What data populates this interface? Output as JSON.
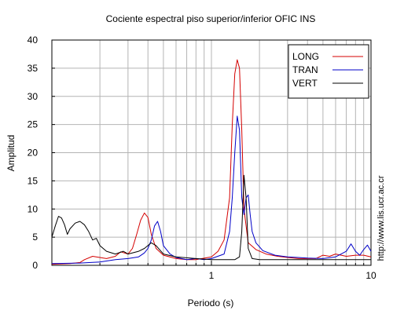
{
  "chart_data": {
    "type": "line",
    "title": "Cociente espectral piso superior/inferior  OFIC INS",
    "xlabel": "Periodo (s)",
    "ylabel": "Amplitud",
    "x_scale": "log",
    "xlim": [
      0.1,
      10
    ],
    "ylim": [
      0,
      40
    ],
    "grid": true,
    "legend_position": "top-right",
    "x_ticks": [
      1,
      10
    ],
    "x_tick_labels": [
      "1",
      "10"
    ],
    "y_ticks": [
      0,
      5,
      10,
      15,
      20,
      25,
      30,
      35,
      40
    ],
    "y_tick_labels": [
      "0",
      "5",
      "10",
      "15",
      "20",
      "25",
      "30",
      "35",
      "40"
    ],
    "watermark": "http://www.lis.ucr.ac.cr",
    "series": [
      {
        "name": "LONG",
        "color": "#d40000",
        "points": [
          [
            0.1,
            0.2
          ],
          [
            0.13,
            0.3
          ],
          [
            0.15,
            0.5
          ],
          [
            0.16,
            1.0
          ],
          [
            0.18,
            1.6
          ],
          [
            0.2,
            1.4
          ],
          [
            0.22,
            1.2
          ],
          [
            0.25,
            1.6
          ],
          [
            0.27,
            2.4
          ],
          [
            0.3,
            2.0
          ],
          [
            0.32,
            3.0
          ],
          [
            0.34,
            5.5
          ],
          [
            0.36,
            8.0
          ],
          [
            0.38,
            9.3
          ],
          [
            0.4,
            8.5
          ],
          [
            0.42,
            5.5
          ],
          [
            0.45,
            3.0
          ],
          [
            0.5,
            1.8
          ],
          [
            0.6,
            1.2
          ],
          [
            0.7,
            1.0
          ],
          [
            0.8,
            1.0
          ],
          [
            1.0,
            1.5
          ],
          [
            1.1,
            2.5
          ],
          [
            1.2,
            4.5
          ],
          [
            1.3,
            12.0
          ],
          [
            1.35,
            25.0
          ],
          [
            1.4,
            34.0
          ],
          [
            1.45,
            36.5
          ],
          [
            1.5,
            35.0
          ],
          [
            1.55,
            24.0
          ],
          [
            1.6,
            10.0
          ],
          [
            1.7,
            4.0
          ],
          [
            1.9,
            2.8
          ],
          [
            2.2,
            2.0
          ],
          [
            2.6,
            1.6
          ],
          [
            3.0,
            1.4
          ],
          [
            3.5,
            1.2
          ],
          [
            4.5,
            1.2
          ],
          [
            5.0,
            1.8
          ],
          [
            5.5,
            1.6
          ],
          [
            6.0,
            2.0
          ],
          [
            7.0,
            1.6
          ],
          [
            8.0,
            1.8
          ],
          [
            9.0,
            1.8
          ],
          [
            10.0,
            1.5
          ]
        ]
      },
      {
        "name": "TRAN",
        "color": "#0000c8",
        "points": [
          [
            0.1,
            0.3
          ],
          [
            0.15,
            0.4
          ],
          [
            0.2,
            0.6
          ],
          [
            0.25,
            1.0
          ],
          [
            0.3,
            1.2
          ],
          [
            0.35,
            1.5
          ],
          [
            0.38,
            2.2
          ],
          [
            0.4,
            3.0
          ],
          [
            0.42,
            4.5
          ],
          [
            0.44,
            7.0
          ],
          [
            0.46,
            7.8
          ],
          [
            0.48,
            6.0
          ],
          [
            0.5,
            3.5
          ],
          [
            0.55,
            2.0
          ],
          [
            0.6,
            1.4
          ],
          [
            0.7,
            1.0
          ],
          [
            0.8,
            1.2
          ],
          [
            0.9,
            1.0
          ],
          [
            1.0,
            1.2
          ],
          [
            1.2,
            2.0
          ],
          [
            1.3,
            6.0
          ],
          [
            1.35,
            12.0
          ],
          [
            1.4,
            20.0
          ],
          [
            1.45,
            26.5
          ],
          [
            1.5,
            24.0
          ],
          [
            1.55,
            12.0
          ],
          [
            1.6,
            9.0
          ],
          [
            1.65,
            12.0
          ],
          [
            1.7,
            12.5
          ],
          [
            1.75,
            9.0
          ],
          [
            1.8,
            6.0
          ],
          [
            1.9,
            4.0
          ],
          [
            2.1,
            2.6
          ],
          [
            2.5,
            1.8
          ],
          [
            3.0,
            1.5
          ],
          [
            4.0,
            1.3
          ],
          [
            5.0,
            1.2
          ],
          [
            6.0,
            1.5
          ],
          [
            6.5,
            2.0
          ],
          [
            7.0,
            2.5
          ],
          [
            7.5,
            3.8
          ],
          [
            8.0,
            2.5
          ],
          [
            8.5,
            1.8
          ],
          [
            9.0,
            2.8
          ],
          [
            9.5,
            3.6
          ],
          [
            10.0,
            2.5
          ]
        ]
      },
      {
        "name": "VERT",
        "color": "#000000",
        "points": [
          [
            0.1,
            5.0
          ],
          [
            0.105,
            7.0
          ],
          [
            0.11,
            8.7
          ],
          [
            0.115,
            8.4
          ],
          [
            0.12,
            7.2
          ],
          [
            0.125,
            5.5
          ],
          [
            0.13,
            6.5
          ],
          [
            0.14,
            7.5
          ],
          [
            0.15,
            7.8
          ],
          [
            0.16,
            7.2
          ],
          [
            0.17,
            6.0
          ],
          [
            0.18,
            4.5
          ],
          [
            0.19,
            4.8
          ],
          [
            0.2,
            3.5
          ],
          [
            0.22,
            2.5
          ],
          [
            0.25,
            2.0
          ],
          [
            0.28,
            2.5
          ],
          [
            0.3,
            2.0
          ],
          [
            0.35,
            2.5
          ],
          [
            0.38,
            3.0
          ],
          [
            0.42,
            4.0
          ],
          [
            0.45,
            3.5
          ],
          [
            0.5,
            2.0
          ],
          [
            0.6,
            1.5
          ],
          [
            0.8,
            1.2
          ],
          [
            1.0,
            1.0
          ],
          [
            1.2,
            1.0
          ],
          [
            1.4,
            1.0
          ],
          [
            1.5,
            1.5
          ],
          [
            1.55,
            6.0
          ],
          [
            1.6,
            16.0
          ],
          [
            1.65,
            12.0
          ],
          [
            1.7,
            3.0
          ],
          [
            1.8,
            1.2
          ],
          [
            2.0,
            1.0
          ],
          [
            3.0,
            1.0
          ],
          [
            5.0,
            1.0
          ],
          [
            7.0,
            1.0
          ],
          [
            10.0,
            1.0
          ]
        ]
      }
    ]
  }
}
